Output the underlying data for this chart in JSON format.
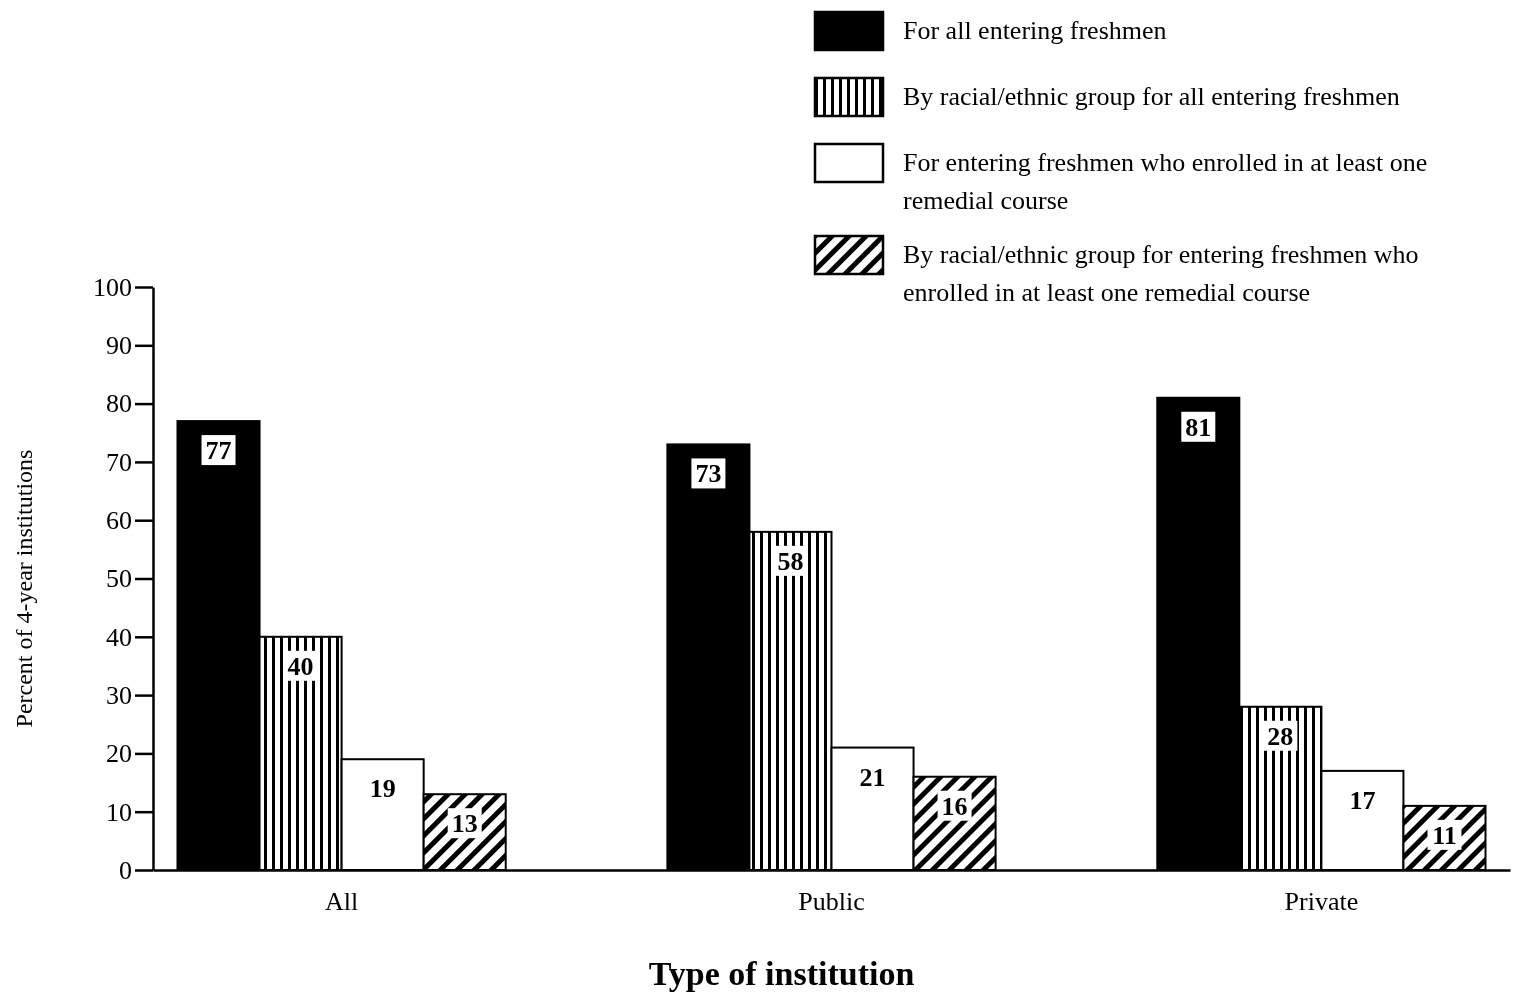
{
  "chart_data": {
    "type": "bar",
    "xlabel": "Type of institution",
    "ylabel": "Percent of 4-year institutions",
    "categories": [
      "All",
      "Public",
      "Private"
    ],
    "series": [
      {
        "name": "For all entering freshmen",
        "color": "#000000",
        "values": [
          77,
          73,
          81
        ]
      },
      {
        "name": "By racial/ethnic group for all entering freshmen",
        "color": "#000000",
        "values": [
          40,
          58,
          28
        ]
      },
      {
        "name": "For entering freshmen who enrolled in at least one remedial course",
        "color": "#ffffff",
        "values": [
          19,
          21,
          17
        ]
      },
      {
        "name": "By racial/ethnic group for entering freshmen who enrolled in at least one remedial course",
        "color": "#000000",
        "values": [
          13,
          16,
          11
        ]
      }
    ],
    "ylim": [
      0,
      100
    ],
    "yticks": [
      0,
      10,
      20,
      30,
      40,
      50,
      60,
      70,
      80,
      90,
      100
    ],
    "grid": false,
    "legend": "top right",
    "data_labels": true
  }
}
